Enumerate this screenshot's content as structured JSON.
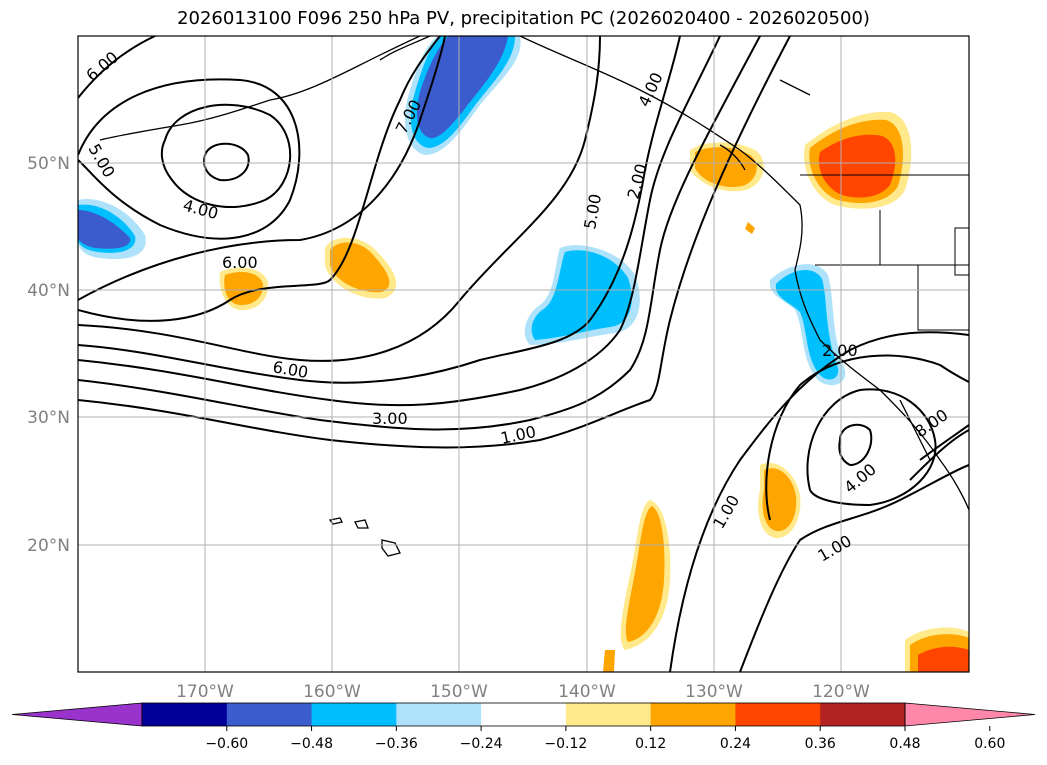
{
  "title": "2026013100 F096 250 hPa PV, precipitation PC (2026020400 - 2026020500)",
  "map": {
    "lat_labels": [
      "50°N",
      "40°N",
      "30°N",
      "20°N"
    ],
    "lon_labels": [
      "170°W",
      "160°W",
      "150°W",
      "140°W",
      "130°W",
      "120°W"
    ],
    "contour_labels": [
      "6.00",
      "5.00",
      "4.00",
      "6.00",
      "7.00",
      "6.00",
      "3.00",
      "1.00",
      "5.00",
      "2.00",
      "4.00",
      "2.00",
      "1.00",
      "4.00",
      "1.00",
      "8.00"
    ],
    "grid": true
  },
  "colorbar": {
    "ticks": [
      "−0.60",
      "−0.48",
      "−0.36",
      "−0.24",
      "−0.12",
      "0.12",
      "0.24",
      "0.36",
      "0.48",
      "0.60"
    ],
    "colors": [
      "#9933cc",
      "#000099",
      "#3b5ccc",
      "#00bfff",
      "#aee2fa",
      "#ffffff",
      "#ffe98a",
      "#ffa500",
      "#ff4500",
      "#b22222",
      "#ff88aa"
    ],
    "extend": "both"
  }
}
